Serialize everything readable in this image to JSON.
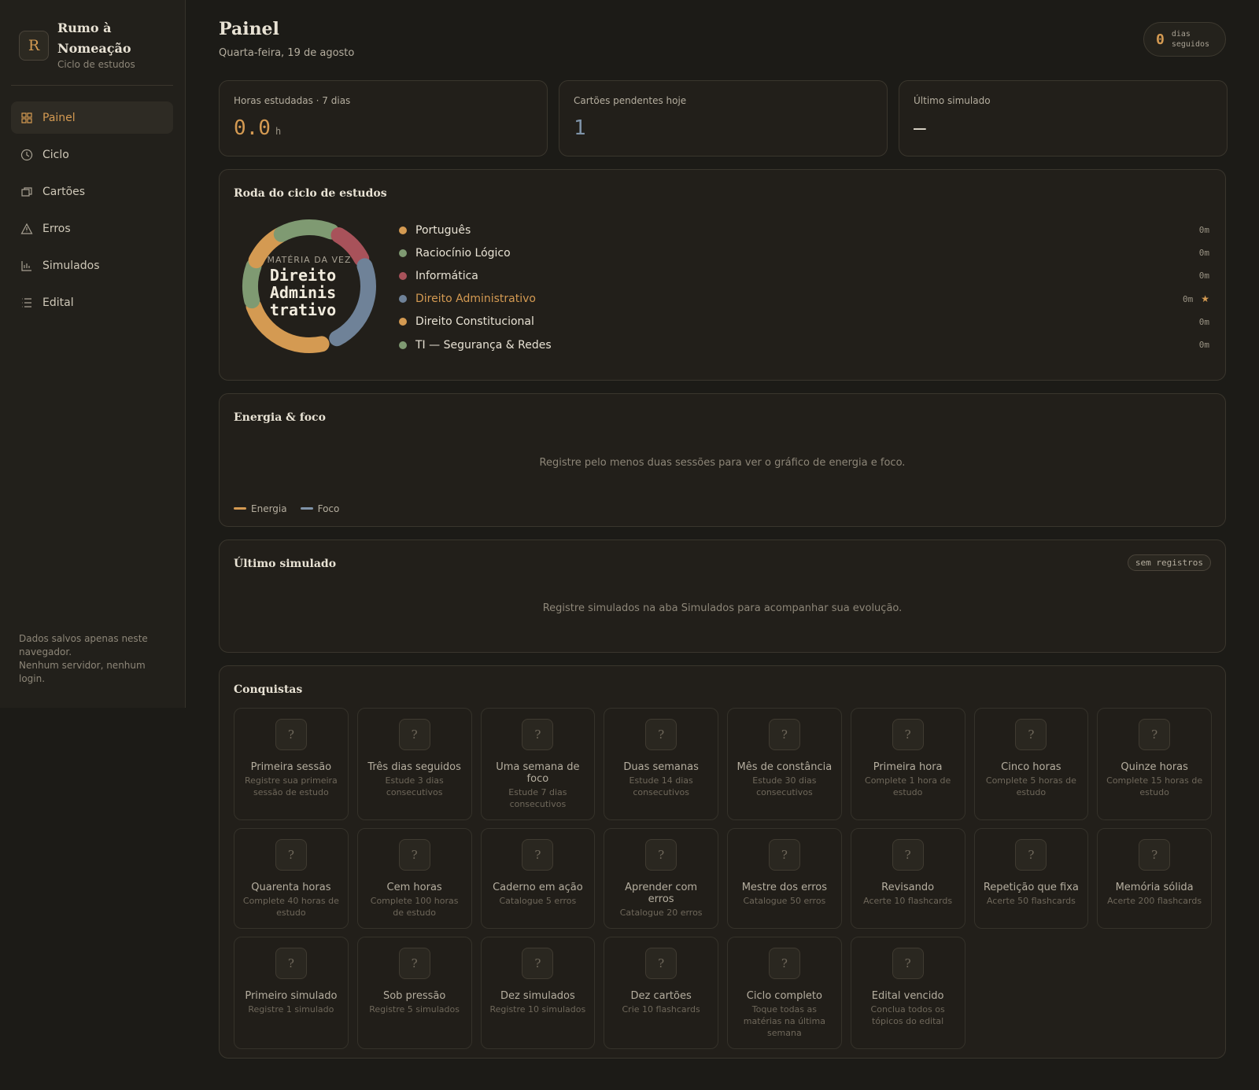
{
  "brand": {
    "logo": "R",
    "title": "Rumo à Nomeação",
    "subtitle": "Ciclo de estudos"
  },
  "nav": [
    {
      "label": "Painel",
      "active": true
    },
    {
      "label": "Ciclo",
      "active": false
    },
    {
      "label": "Cartões",
      "active": false
    },
    {
      "label": "Erros",
      "active": false
    },
    {
      "label": "Simulados",
      "active": false
    },
    {
      "label": "Edital",
      "active": false
    }
  ],
  "sidebar_note": [
    "Dados salvos apenas neste navegador.",
    "Nenhum servidor, nenhum login."
  ],
  "header": {
    "title": "Painel",
    "date": "Quarta-feira, 19 de agosto",
    "streak": {
      "value": 0,
      "label": "dias seguidos"
    }
  },
  "stats": [
    {
      "label": "Horas estudadas · 7 dias",
      "value": "0.0",
      "unit": "h"
    },
    {
      "label": "Cartões pendentes hoje",
      "value": "1"
    },
    {
      "label": "Último simulado",
      "value": "—"
    }
  ],
  "wheel": {
    "title": "Roda do ciclo de estudos",
    "center_label": "MATÉRIA DA VEZ",
    "center_lines": [
      "Direito",
      "Adminis",
      "trativo"
    ],
    "current_marker": "★",
    "subjects": [
      {
        "name": "Português",
        "color": "#d49a52",
        "time": "0m",
        "current": false
      },
      {
        "name": "Raciocínio Lógico",
        "color": "#7f9a72",
        "time": "0m",
        "current": false
      },
      {
        "name": "Informática",
        "color": "#a8525a",
        "time": "0m",
        "current": false
      },
      {
        "name": "Direito Administrativo",
        "color": "#6f8298",
        "time": "0m",
        "current": true
      },
      {
        "name": "Direito Constitucional",
        "color": "#d49a52",
        "time": "0m",
        "current": false
      },
      {
        "name": "TI — Segurança & Redes",
        "color": "#7f9a72",
        "time": "0m",
        "current": false
      }
    ]
  },
  "energy": {
    "title": "Energia & foco",
    "empty": "Registre pelo menos duas sessões para ver o gráfico de energia e foco.",
    "legend": [
      {
        "name": "Energia",
        "color": "#d49a52"
      },
      {
        "name": "Foco",
        "color": "#7f93a8"
      }
    ]
  },
  "last_sim": {
    "title": "Último simulado",
    "badge": "sem registros",
    "empty": "Registre simulados na aba Simulados para acompanhar sua evolução."
  },
  "achievements": {
    "title": "Conquistas",
    "icon": "?",
    "items": [
      {
        "name": "Primeira sessão",
        "desc": "Registre sua primeira sessão de estudo"
      },
      {
        "name": "Três dias seguidos",
        "desc": "Estude 3 dias consecutivos"
      },
      {
        "name": "Uma semana de foco",
        "desc": "Estude 7 dias consecutivos"
      },
      {
        "name": "Duas semanas",
        "desc": "Estude 14 dias consecutivos"
      },
      {
        "name": "Mês de constância",
        "desc": "Estude 30 dias consecutivos"
      },
      {
        "name": "Primeira hora",
        "desc": "Complete 1 hora de estudo"
      },
      {
        "name": "Cinco horas",
        "desc": "Complete 5 horas de estudo"
      },
      {
        "name": "Quinze horas",
        "desc": "Complete 15 horas de estudo"
      },
      {
        "name": "Quarenta horas",
        "desc": "Complete 40 horas de estudo"
      },
      {
        "name": "Cem horas",
        "desc": "Complete 100 horas de estudo"
      },
      {
        "name": "Caderno em ação",
        "desc": "Catalogue 5 erros"
      },
      {
        "name": "Aprender com erros",
        "desc": "Catalogue 20 erros"
      },
      {
        "name": "Mestre dos erros",
        "desc": "Catalogue 50 erros"
      },
      {
        "name": "Revisando",
        "desc": "Acerte 10 flashcards"
      },
      {
        "name": "Repetição que fixa",
        "desc": "Acerte 50 flashcards"
      },
      {
        "name": "Memória sólida",
        "desc": "Acerte 200 flashcards"
      },
      {
        "name": "Primeiro simulado",
        "desc": "Registre 1 simulado"
      },
      {
        "name": "Sob pressão",
        "desc": "Registre 5 simulados"
      },
      {
        "name": "Dez simulados",
        "desc": "Registre 10 simulados"
      },
      {
        "name": "Dez cartões",
        "desc": "Crie 10 flashcards"
      },
      {
        "name": "Ciclo completo",
        "desc": "Toque todas as matérias na última semana"
      },
      {
        "name": "Edital vencido",
        "desc": "Conclua todos os tópicos do edital"
      }
    ]
  }
}
